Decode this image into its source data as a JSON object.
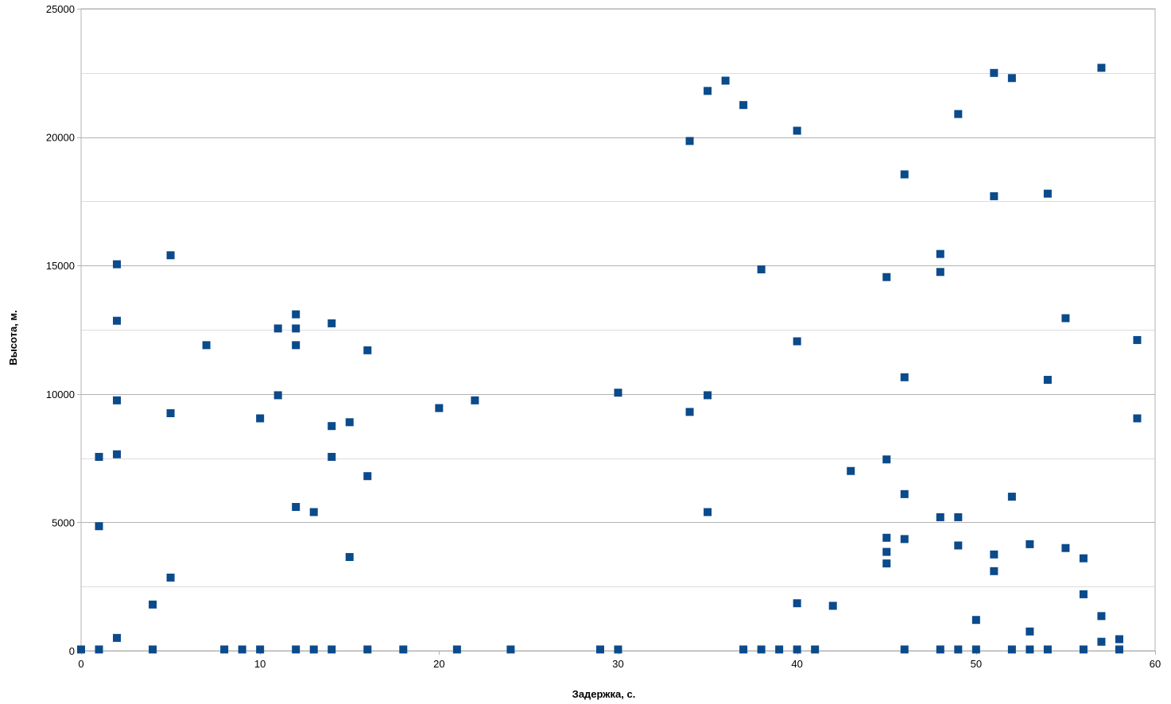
{
  "chart_data": {
    "type": "scatter",
    "title": "",
    "xlabel": "Задержка, с.",
    "ylabel": "Высота, м.",
    "xlim": [
      0,
      60
    ],
    "ylim": [
      0,
      25000
    ],
    "x_ticks": [
      0,
      10,
      20,
      30,
      40,
      50,
      60
    ],
    "y_ticks": [
      0,
      5000,
      10000,
      15000,
      20000,
      25000
    ],
    "x_tick_labels": [
      "0",
      "10",
      "20",
      "30",
      "40",
      "50",
      "60"
    ],
    "y_tick_labels": [
      "0",
      "5000",
      "10000",
      "15000",
      "20000",
      "25000"
    ],
    "grid": "horizontal",
    "legend": "none",
    "marker": "square",
    "marker_color": "#0b4a8b",
    "grid_color": "#c8c8c8",
    "series": [
      {
        "points": [
          [
            0,
            50
          ],
          [
            1,
            50
          ],
          [
            1,
            4850
          ],
          [
            1,
            7550
          ],
          [
            2,
            500
          ],
          [
            2,
            7650
          ],
          [
            2,
            9750
          ],
          [
            2,
            12850
          ],
          [
            2,
            15050
          ],
          [
            4,
            50
          ],
          [
            4,
            1800
          ],
          [
            5,
            2850
          ],
          [
            5,
            9250
          ],
          [
            5,
            15400
          ],
          [
            7,
            11900
          ],
          [
            8,
            50
          ],
          [
            9,
            50
          ],
          [
            10,
            50
          ],
          [
            10,
            9050
          ],
          [
            11,
            9950
          ],
          [
            11,
            12550
          ],
          [
            12,
            50
          ],
          [
            12,
            5600
          ],
          [
            12,
            11900
          ],
          [
            12,
            12550
          ],
          [
            12,
            13100
          ],
          [
            13,
            50
          ],
          [
            13,
            5400
          ],
          [
            14,
            50
          ],
          [
            14,
            7550
          ],
          [
            14,
            8750
          ],
          [
            14,
            12750
          ],
          [
            15,
            3650
          ],
          [
            15,
            8900
          ],
          [
            16,
            50
          ],
          [
            16,
            6800
          ],
          [
            16,
            11700
          ],
          [
            18,
            50
          ],
          [
            20,
            9450
          ],
          [
            21,
            50
          ],
          [
            22,
            9750
          ],
          [
            24,
            50
          ],
          [
            29,
            50
          ],
          [
            30,
            50
          ],
          [
            30,
            10050
          ],
          [
            34,
            9300
          ],
          [
            34,
            19850
          ],
          [
            35,
            5400
          ],
          [
            35,
            9950
          ],
          [
            35,
            21800
          ],
          [
            36,
            22200
          ],
          [
            37,
            50
          ],
          [
            37,
            21250
          ],
          [
            38,
            50
          ],
          [
            38,
            14850
          ],
          [
            39,
            50
          ],
          [
            40,
            50
          ],
          [
            40,
            1850
          ],
          [
            40,
            12050
          ],
          [
            40,
            20250
          ],
          [
            41,
            50
          ],
          [
            42,
            1750
          ],
          [
            43,
            7000
          ],
          [
            45,
            3400
          ],
          [
            45,
            3850
          ],
          [
            45,
            4400
          ],
          [
            45,
            7450
          ],
          [
            45,
            14550
          ],
          [
            46,
            50
          ],
          [
            46,
            4350
          ],
          [
            46,
            6100
          ],
          [
            46,
            10650
          ],
          [
            46,
            18550
          ],
          [
            48,
            50
          ],
          [
            48,
            5200
          ],
          [
            48,
            14750
          ],
          [
            48,
            15450
          ],
          [
            49,
            50
          ],
          [
            49,
            4100
          ],
          [
            49,
            5200
          ],
          [
            49,
            20900
          ],
          [
            50,
            50
          ],
          [
            50,
            1200
          ],
          [
            51,
            3100
          ],
          [
            51,
            3750
          ],
          [
            51,
            17700
          ],
          [
            51,
            22500
          ],
          [
            52,
            50
          ],
          [
            52,
            6000
          ],
          [
            52,
            22300
          ],
          [
            53,
            50
          ],
          [
            53,
            750
          ],
          [
            53,
            4150
          ],
          [
            54,
            50
          ],
          [
            54,
            10550
          ],
          [
            54,
            17800
          ],
          [
            55,
            4000
          ],
          [
            55,
            12950
          ],
          [
            56,
            50
          ],
          [
            56,
            2200
          ],
          [
            56,
            3600
          ],
          [
            57,
            350
          ],
          [
            57,
            1350
          ],
          [
            57,
            22700
          ],
          [
            58,
            50
          ],
          [
            58,
            450
          ],
          [
            59,
            9050
          ],
          [
            59,
            12100
          ]
        ]
      }
    ]
  }
}
